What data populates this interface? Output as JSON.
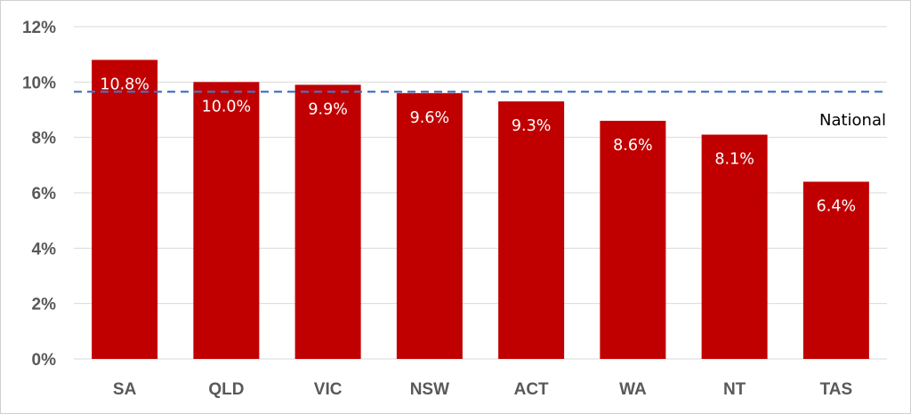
{
  "chart_data": {
    "type": "bar",
    "categories": [
      "SA",
      "QLD",
      "VIC",
      "NSW",
      "ACT",
      "WA",
      "NT",
      "TAS"
    ],
    "values": [
      10.8,
      10.0,
      9.9,
      9.6,
      9.3,
      8.6,
      8.1,
      6.4
    ],
    "data_labels": [
      "10.8%",
      "10.0%",
      "9.9%",
      "9.6%",
      "9.3%",
      "8.6%",
      "8.1%",
      "6.4%"
    ],
    "ylim": [
      0,
      12
    ],
    "yticks": [
      0,
      2,
      4,
      6,
      8,
      10,
      12
    ],
    "ytick_labels": [
      "0%",
      "2%",
      "4%",
      "6%",
      "8%",
      "10%",
      "12%"
    ],
    "grid": true,
    "bar_color": "#c00000",
    "reference_line": {
      "label": "National",
      "value": 9.65,
      "color": "#4472c4",
      "style": "dashed"
    }
  }
}
